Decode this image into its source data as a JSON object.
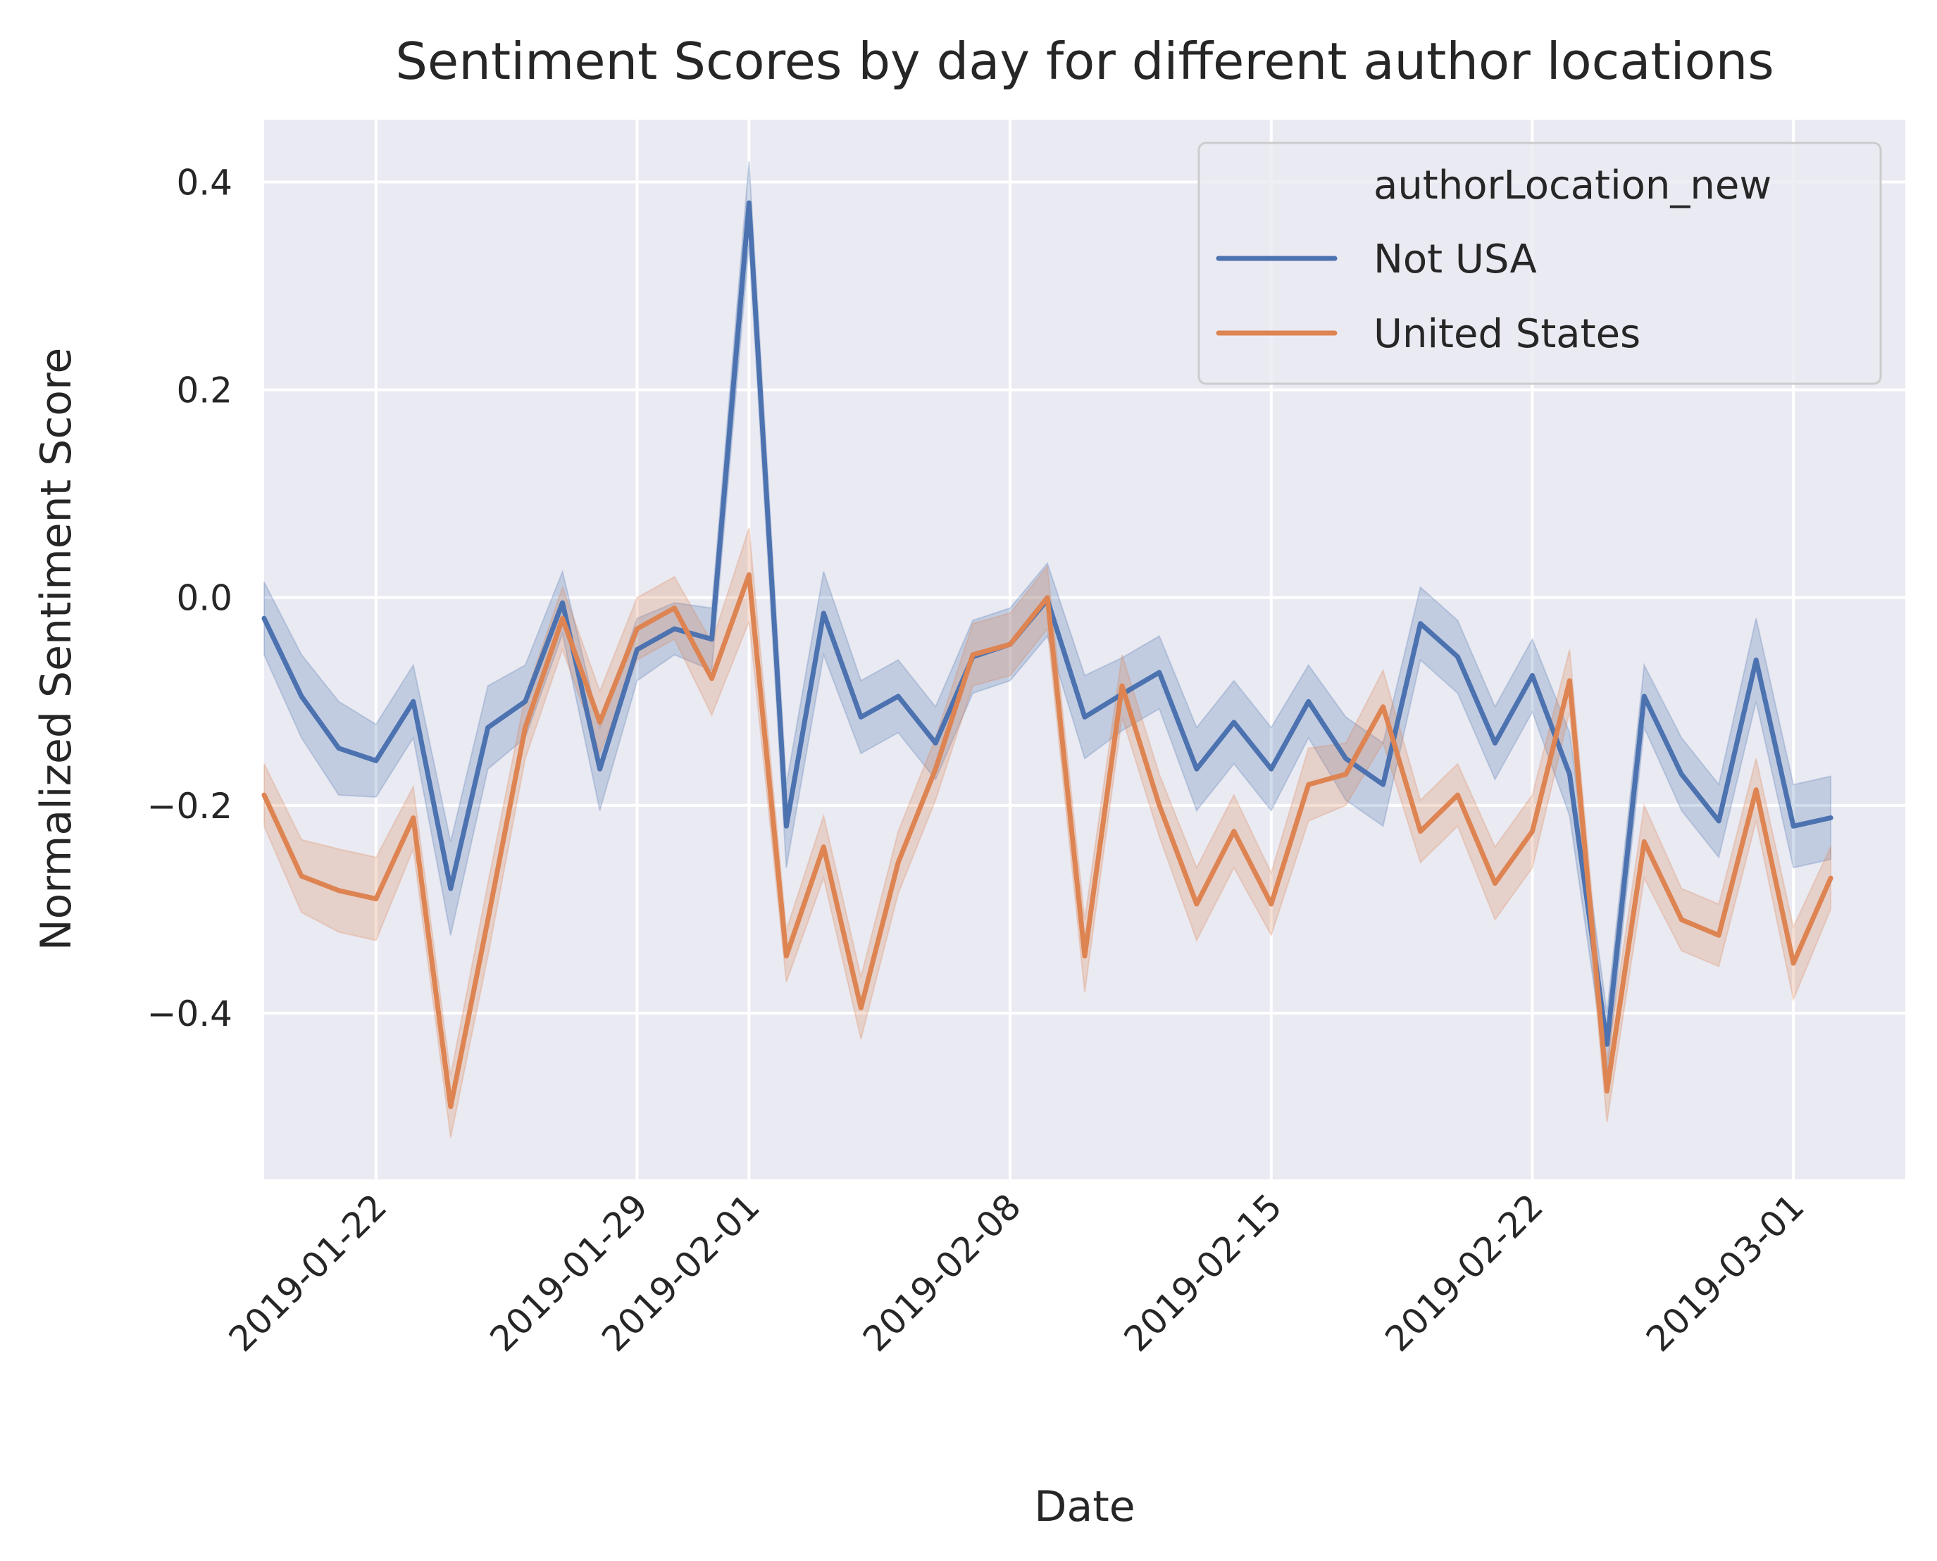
{
  "chart_data": {
    "type": "line",
    "title": "Sentiment Scores by day for different author locations",
    "xlabel": "Date",
    "ylabel": "Normalized Sentiment Score",
    "x_start": "2019-01-19",
    "x_end": "2019-03-04",
    "xlim": [
      "2019-01-19",
      "2019-03-04"
    ],
    "ylim": [
      -0.56,
      0.46
    ],
    "x_ticks": [
      "2019-01-22",
      "2019-01-29",
      "2019-02-01",
      "2019-02-08",
      "2019-02-15",
      "2019-02-22",
      "2019-03-01"
    ],
    "y_ticks": [
      {
        "value": 0.4,
        "label": "0.4"
      },
      {
        "value": 0.2,
        "label": "0.2"
      },
      {
        "value": 0.0,
        "label": "0.0"
      },
      {
        "value": -0.2,
        "label": "−0.2"
      },
      {
        "value": -0.4,
        "label": "−0.4"
      }
    ],
    "grid": true,
    "legend": {
      "title": "authorLocation_new",
      "placement": "top-right"
    },
    "series": [
      {
        "name": "Not USA",
        "color": "#4c72b0",
        "values": [
          -0.02,
          -0.095,
          -0.145,
          -0.157,
          -0.1,
          -0.28,
          -0.125,
          -0.1,
          -0.005,
          -0.165,
          -0.05,
          -0.03,
          -0.04,
          0.38,
          -0.22,
          -0.015,
          -0.115,
          -0.095,
          -0.14,
          -0.057,
          -0.045,
          -0.002,
          -0.115,
          -0.093,
          -0.072,
          -0.165,
          -0.12,
          -0.165,
          -0.1,
          -0.155,
          -0.18,
          -0.025,
          -0.057,
          -0.14,
          -0.075,
          -0.17,
          -0.43,
          -0.095,
          -0.17,
          -0.215,
          -0.06,
          -0.22,
          -0.212
        ],
        "ci": [
          0.035,
          0.04,
          0.045,
          0.035,
          0.035,
          0.045,
          0.04,
          0.035,
          0.03,
          0.04,
          0.03,
          0.025,
          0.03,
          0.04,
          0.04,
          0.04,
          0.035,
          0.035,
          0.035,
          0.035,
          0.035,
          0.035,
          0.04,
          0.035,
          0.035,
          0.04,
          0.04,
          0.04,
          0.035,
          0.04,
          0.04,
          0.035,
          0.035,
          0.035,
          0.035,
          0.04,
          0.03,
          0.03,
          0.035,
          0.035,
          0.04,
          0.04,
          0.04
        ]
      },
      {
        "name": "United States",
        "color": "#dd8452",
        "values": [
          -0.19,
          -0.268,
          -0.282,
          -0.29,
          -0.212,
          -0.49,
          -0.31,
          -0.125,
          -0.02,
          -0.12,
          -0.03,
          -0.01,
          -0.078,
          0.022,
          -0.345,
          -0.24,
          -0.395,
          -0.255,
          -0.165,
          -0.055,
          -0.045,
          0.0,
          -0.345,
          -0.085,
          -0.2,
          -0.295,
          -0.225,
          -0.295,
          -0.18,
          -0.17,
          -0.105,
          -0.225,
          -0.19,
          -0.275,
          -0.225,
          -0.08,
          -0.475,
          -0.235,
          -0.31,
          -0.325,
          -0.185,
          -0.352,
          -0.27
        ],
        "ci": [
          0.03,
          0.035,
          0.04,
          0.04,
          0.03,
          0.03,
          0.035,
          0.03,
          0.03,
          0.03,
          0.03,
          0.03,
          0.035,
          0.045,
          0.025,
          0.03,
          0.03,
          0.03,
          0.03,
          0.03,
          0.03,
          0.03,
          0.035,
          0.03,
          0.03,
          0.035,
          0.035,
          0.03,
          0.035,
          0.03,
          0.035,
          0.03,
          0.03,
          0.035,
          0.035,
          0.03,
          0.03,
          0.035,
          0.03,
          0.03,
          0.03,
          0.035,
          0.03
        ]
      }
    ]
  }
}
